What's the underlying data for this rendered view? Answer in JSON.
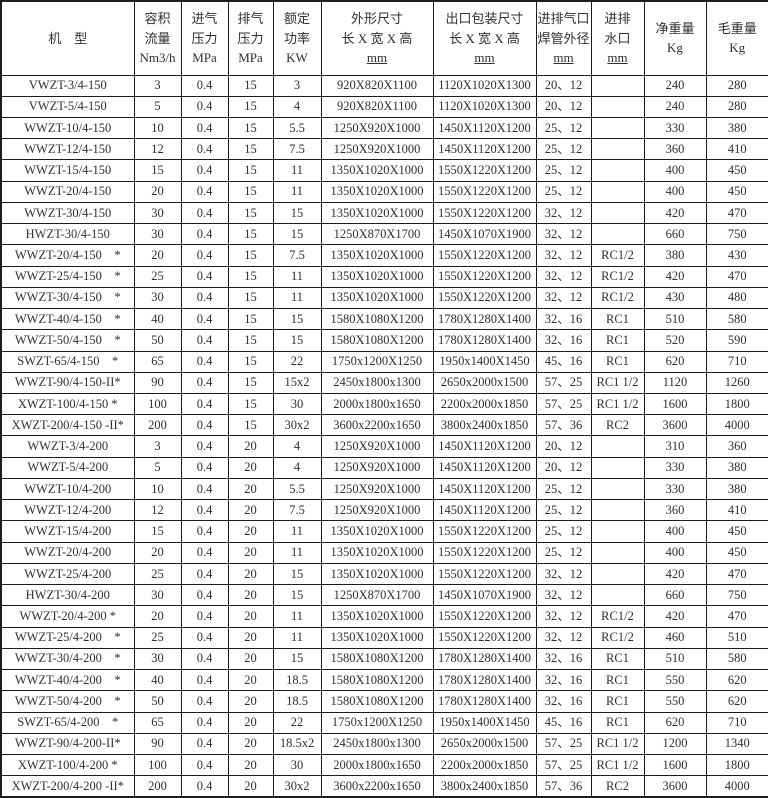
{
  "table": {
    "columns": [
      {
        "id": "model",
        "lines": [
          "机　型"
        ]
      },
      {
        "id": "flow",
        "lines": [
          "容积",
          "流量",
          "Nm3/h"
        ]
      },
      {
        "id": "inlet-pressure",
        "lines": [
          "进气",
          "压力",
          "MPa"
        ]
      },
      {
        "id": "discharge-pressure",
        "lines": [
          "排气",
          "压力",
          "MPa"
        ]
      },
      {
        "id": "rated-power",
        "lines": [
          "额定",
          "功率",
          "KW"
        ]
      },
      {
        "id": "dimensions",
        "lines": [
          "外形尺寸",
          "长 X 宽 X 高",
          "mm"
        ]
      },
      {
        "id": "packing-size",
        "lines": [
          "出口包装尺寸",
          "长 X 宽 X 高",
          "mm"
        ]
      },
      {
        "id": "pipe-od",
        "lines": [
          "进排气口",
          "焊管外径",
          "mm"
        ]
      },
      {
        "id": "water-port",
        "lines": [
          "进排",
          "水口",
          "mm"
        ]
      },
      {
        "id": "net-weight",
        "lines": [
          "净重量",
          "Kg"
        ]
      },
      {
        "id": "gross-weight",
        "lines": [
          "毛重量",
          "Kg"
        ]
      }
    ],
    "rows": [
      [
        "VWZT-3/4-150",
        "3",
        "0.4",
        "15",
        "3",
        "920X820X1100",
        "1120X1020X1300",
        "20、12",
        "",
        "240",
        "280"
      ],
      [
        "VWZT-5/4-150",
        "5",
        "0.4",
        "15",
        "4",
        "920X820X1100",
        "1120X1020X1300",
        "20、12",
        "",
        "240",
        "280"
      ],
      [
        "WWZT-10/4-150",
        "10",
        "0.4",
        "15",
        "5.5",
        "1250X920X1000",
        "1450X1120X1200",
        "25、12",
        "",
        "330",
        "380"
      ],
      [
        "WWZT-12/4-150",
        "12",
        "0.4",
        "15",
        "7.5",
        "1250X920X1000",
        "1450X1120X1200",
        "25、12",
        "",
        "360",
        "410"
      ],
      [
        "WWZT-15/4-150",
        "15",
        "0.4",
        "15",
        "11",
        "1350X1020X1000",
        "1550X1220X1200",
        "25、12",
        "",
        "400",
        "450"
      ],
      [
        "WWZT-20/4-150",
        "20",
        "0.4",
        "15",
        "11",
        "1350X1020X1000",
        "1550X1220X1200",
        "25、12",
        "",
        "400",
        "450"
      ],
      [
        "WWZT-30/4-150",
        "30",
        "0.4",
        "15",
        "15",
        "1350X1020X1000",
        "1550X1220X1200",
        "32、12",
        "",
        "420",
        "470"
      ],
      [
        "HWZT-30/4-150",
        "30",
        "0.4",
        "15",
        "15",
        "1250X870X1700",
        "1450X1070X1900",
        "32、12",
        "",
        "660",
        "750"
      ],
      [
        "WWZT-20/4-150    *",
        "20",
        "0.4",
        "15",
        "7.5",
        "1350X1020X1000",
        "1550X1220X1200",
        "32、12",
        "RC1/2",
        "380",
        "430"
      ],
      [
        "WWZT-25/4-150    *",
        "25",
        "0.4",
        "15",
        "11",
        "1350X1020X1000",
        "1550X1220X1200",
        "32、12",
        "RC1/2",
        "420",
        "470"
      ],
      [
        "WWZT-30/4-150    *",
        "30",
        "0.4",
        "15",
        "11",
        "1350X1020X1000",
        "1550X1220X1200",
        "32、12",
        "RC1/2",
        "430",
        "480"
      ],
      [
        "WWZT-40/4-150    *",
        "40",
        "0.4",
        "15",
        "15",
        "1580X1080X1200",
        "1780X1280X1400",
        "32、16",
        "RC1",
        "510",
        "580"
      ],
      [
        "WWZT-50/4-150    *",
        "50",
        "0.4",
        "15",
        "15",
        "1580X1080X1200",
        "1780X1280X1400",
        "32、16",
        "RC1",
        "520",
        "590"
      ],
      [
        "SWZT-65/4-150    *",
        "65",
        "0.4",
        "15",
        "22",
        "1750x1200X1250",
        "1950x1400X1450",
        "45、16",
        "RC1",
        "620",
        "710"
      ],
      [
        "WWZT-90/4-150-II*",
        "90",
        "0.4",
        "15",
        "15x2",
        "2450x1800x1300",
        "2650x2000x1500",
        "57、25",
        "RC1 1/2",
        "1120",
        "1260"
      ],
      [
        "XWZT-100/4-150 *",
        "100",
        "0.4",
        "15",
        "30",
        "2000x1800x1650",
        "2200x2000x1850",
        "57、25",
        "RC1 1/2",
        "1600",
        "1800"
      ],
      [
        "XWZT-200/4-150 -II*",
        "200",
        "0.4",
        "15",
        "30x2",
        "3600x2200x1650",
        "3800x2400x1850",
        "57、36",
        "RC2",
        "3600",
        "4000"
      ],
      [
        "WWZT-3/4-200",
        "3",
        "0.4",
        "20",
        "4",
        "1250X920X1000",
        "1450X1120X1200",
        "20、12",
        "",
        "310",
        "360"
      ],
      [
        "WWZT-5/4-200",
        "5",
        "0.4",
        "20",
        "4",
        "1250X920X1000",
        "1450X1120X1200",
        "20、12",
        "",
        "330",
        "380"
      ],
      [
        "WWZT-10/4-200",
        "10",
        "0.4",
        "20",
        "5.5",
        "1250X920X1000",
        "1450X1120X1200",
        "25、12",
        "",
        "330",
        "380"
      ],
      [
        "WWZT-12/4-200",
        "12",
        "0.4",
        "20",
        "7.5",
        "1250X920X1000",
        "1450X1120X1200",
        "25、12",
        "",
        "360",
        "410"
      ],
      [
        "WWZT-15/4-200",
        "15",
        "0.4",
        "20",
        "11",
        "1350X1020X1000",
        "1550X1220X1200",
        "25、12",
        "",
        "400",
        "450"
      ],
      [
        "WWZT-20/4-200",
        "20",
        "0.4",
        "20",
        "11",
        "1350X1020X1000",
        "1550X1220X1200",
        "25、12",
        "",
        "400",
        "450"
      ],
      [
        "WWZT-25/4-200",
        "25",
        "0.4",
        "20",
        "15",
        "1350X1020X1000",
        "1550X1220X1200",
        "32、12",
        "",
        "420",
        "470"
      ],
      [
        "HWZT-30/4-200",
        "30",
        "0.4",
        "20",
        "15",
        "1250X870X1700",
        "1450X1070X1900",
        "32、12",
        "",
        "660",
        "750"
      ],
      [
        "WWZT-20/4-200 *",
        "20",
        "0.4",
        "20",
        "11",
        "1350X1020X1000",
        "1550X1220X1200",
        "32、12",
        "RC1/2",
        "420",
        "470"
      ],
      [
        "WWZT-25/4-200    *",
        "25",
        "0.4",
        "20",
        "11",
        "1350X1020X1000",
        "1550X1220X1200",
        "32、12",
        "RC1/2",
        "460",
        "510"
      ],
      [
        "WWZT-30/4-200    *",
        "30",
        "0.4",
        "20",
        "15",
        "1580X1080X1200",
        "1780X1280X1400",
        "32、16",
        "RC1",
        "510",
        "580"
      ],
      [
        "WWZT-40/4-200    *",
        "40",
        "0.4",
        "20",
        "18.5",
        "1580X1080X1200",
        "1780X1280X1400",
        "32、16",
        "RC1",
        "550",
        "620"
      ],
      [
        "WWZT-50/4-200    *",
        "50",
        "0.4",
        "20",
        "18.5",
        "1580X1080X1200",
        "1780X1280X1400",
        "32、16",
        "RC1",
        "550",
        "620"
      ],
      [
        "SWZT-65/4-200    *",
        "65",
        "0.4",
        "20",
        "22",
        "1750x1200X1250",
        "1950x1400X1450",
        "45、16",
        "RC1",
        "620",
        "710"
      ],
      [
        "WWZT-90/4-200-II*",
        "90",
        "0.4",
        "20",
        "18.5x2",
        "2450x1800x1300",
        "2650x2000x1500",
        "57、25",
        "RC1 1/2",
        "1200",
        "1340"
      ],
      [
        "XWZT-100/4-200 *",
        "100",
        "0.4",
        "20",
        "30",
        "2000x1800x1650",
        "2200x2000x1850",
        "57、25",
        "RC1 1/2",
        "1600",
        "1800"
      ],
      [
        "XWZT-200/4-200 -II*",
        "200",
        "0.4",
        "20",
        "30x2",
        "3600x2200x1650",
        "3800x2400x1850",
        "57、36",
        "RC2",
        "3600",
        "4000"
      ]
    ]
  }
}
